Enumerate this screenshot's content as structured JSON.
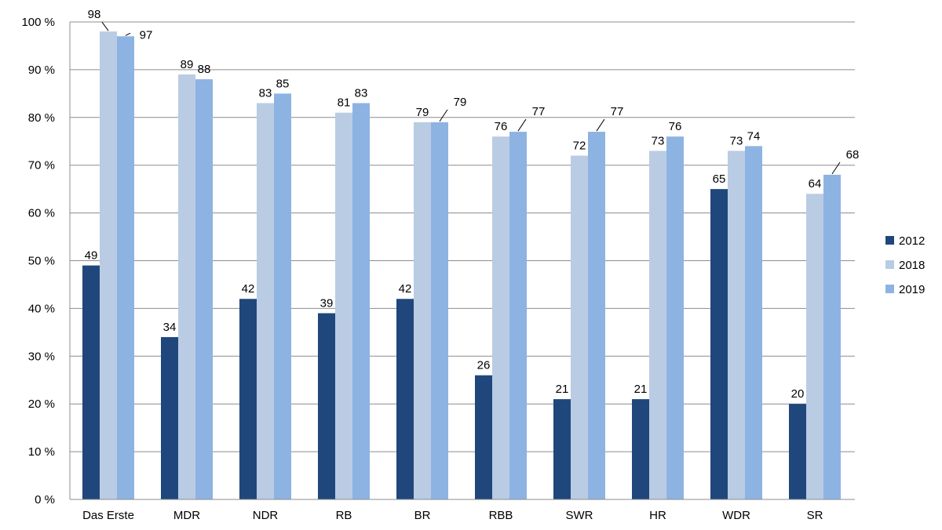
{
  "chart_data": {
    "type": "bar",
    "categories": [
      "Das Erste",
      "MDR",
      "NDR",
      "RB",
      "BR",
      "RBB",
      "SWR",
      "HR",
      "WDR",
      "SR"
    ],
    "series": [
      {
        "name": "2012",
        "color": "#1f477b",
        "values": [
          49,
          34,
          42,
          39,
          42,
          26,
          21,
          21,
          65,
          20
        ]
      },
      {
        "name": "2018",
        "color": "#b9cce4",
        "values": [
          98,
          89,
          83,
          81,
          79,
          76,
          72,
          73,
          73,
          64
        ]
      },
      {
        "name": "2019",
        "color": "#8db3e2",
        "values": [
          97,
          88,
          85,
          83,
          79,
          77,
          77,
          76,
          74,
          68
        ]
      }
    ],
    "data_labels": [
      [
        "49",
        "34",
        "42",
        "39",
        "42",
        "26",
        "21",
        "21",
        "65",
        "20"
      ],
      [
        "98",
        "89",
        "83",
        "81",
        "79",
        "76",
        "72",
        "73",
        "73",
        "64"
      ],
      [
        "97",
        "88",
        "85",
        "83",
        "79",
        "77",
        "77",
        "76",
        "74",
        "68"
      ]
    ],
    "ylim": [
      0,
      100
    ],
    "yticks": [
      {
        "value": 0,
        "label": "0 %"
      },
      {
        "value": 10,
        "label": "10 %"
      },
      {
        "value": 20,
        "label": "20 %"
      },
      {
        "value": 30,
        "label": "30 %"
      },
      {
        "value": 40,
        "label": "40 %"
      },
      {
        "value": 50,
        "label": "50 %"
      },
      {
        "value": 60,
        "label": "60 %"
      },
      {
        "value": 70,
        "label": "70 %"
      },
      {
        "value": 80,
        "label": "80 %"
      },
      {
        "value": 90,
        "label": "90 %"
      },
      {
        "value": 100,
        "label": "100 %"
      }
    ],
    "title": "",
    "xlabel": "",
    "ylabel": "",
    "grid": true,
    "legend_position": "right"
  }
}
